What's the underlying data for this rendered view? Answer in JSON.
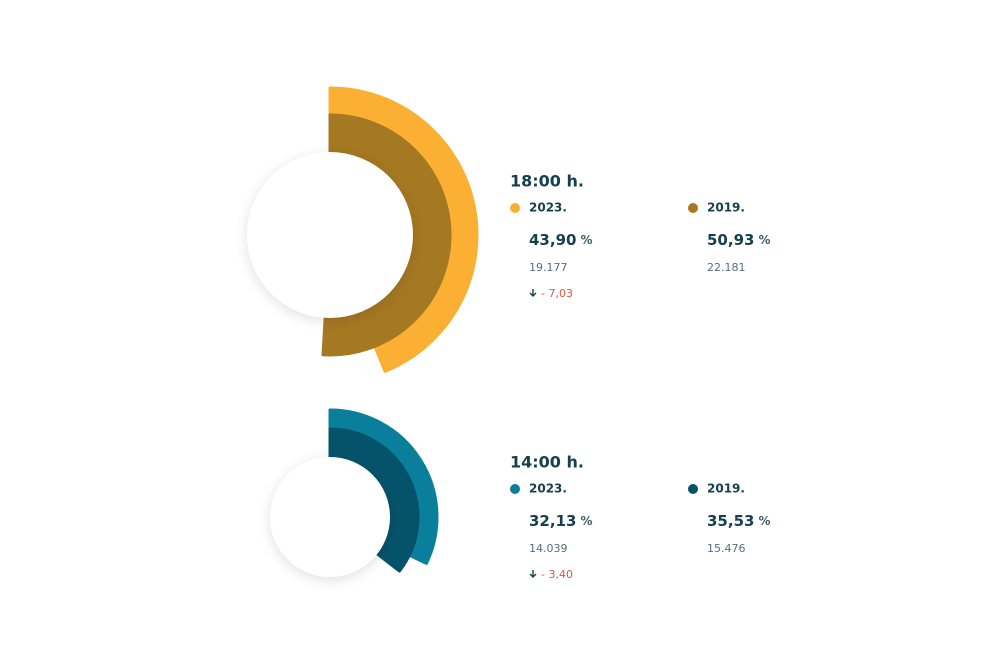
{
  "chart_data": [
    {
      "type": "radial-bar",
      "title": "18:00 h.",
      "unit": "%",
      "series": [
        {
          "name": "2023.",
          "color": "#fbb034",
          "value": 43.9,
          "value_label": "43,90",
          "count": 19177,
          "count_label": "19.177",
          "change": -7.03,
          "change_label": "- 7,03"
        },
        {
          "name": "2019.",
          "color": "#a57822",
          "value": 50.93,
          "value_label": "50,93",
          "count": 22181,
          "count_label": "22.181"
        }
      ]
    },
    {
      "type": "radial-bar",
      "title": "14:00 h.",
      "unit": "%",
      "series": [
        {
          "name": "2023.",
          "color": "#0a7f9b",
          "value": 32.13,
          "value_label": "32,13",
          "count": 14039,
          "count_label": "14.039",
          "change": -3.4,
          "change_label": "- 3,40"
        },
        {
          "name": "2019.",
          "color": "#05536a",
          "value": 35.53,
          "value_label": "35,53",
          "count": 15476,
          "count_label": "15.476"
        }
      ]
    }
  ]
}
